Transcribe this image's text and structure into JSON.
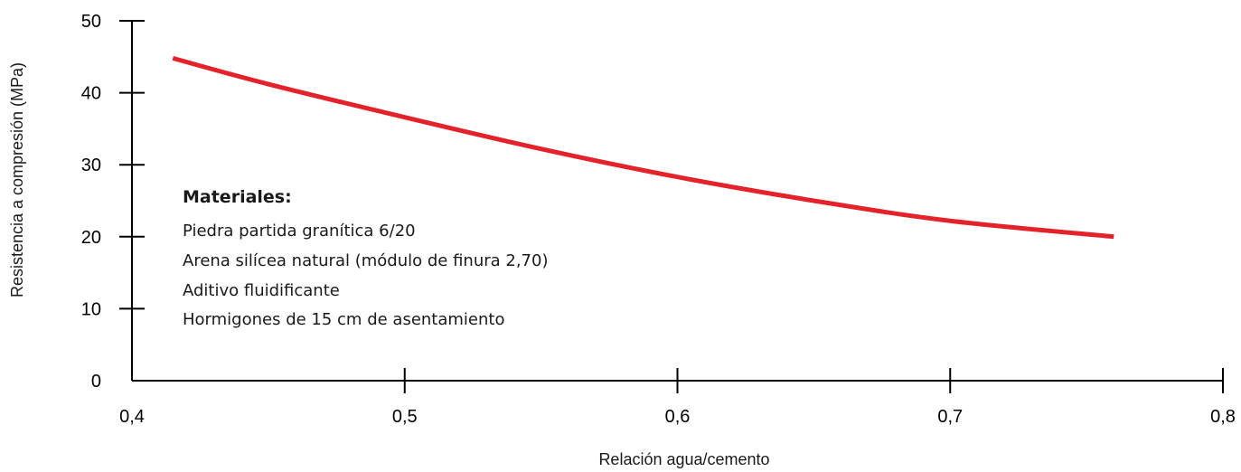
{
  "chart_data": {
    "type": "line",
    "title": "",
    "xlabel": "Relación agua/cemento",
    "ylabel": "Resistencia a compresión (MPa)",
    "xlim": [
      0.4,
      0.8
    ],
    "ylim": [
      0,
      50
    ],
    "x_ticks": [
      0.4,
      0.5,
      0.6,
      0.7,
      0.8
    ],
    "x_tick_labels": [
      "0,4",
      "0,5",
      "0,6",
      "0,7",
      "0,8"
    ],
    "y_ticks": [
      0,
      10,
      20,
      30,
      40,
      50
    ],
    "y_tick_labels": [
      "0",
      "10",
      "20",
      "30",
      "40",
      "50"
    ],
    "grid": false,
    "series": [
      {
        "color": "#e3222a",
        "x": [
          0.415,
          0.45,
          0.5,
          0.55,
          0.6,
          0.65,
          0.7,
          0.76
        ],
        "values": [
          44.8,
          41.2,
          36.6,
          32.2,
          28.3,
          25.0,
          22.2,
          20.0
        ]
      }
    ],
    "annotation": {
      "heading": "Materiales:",
      "lines": [
        "Piedra partida granítica 6/20",
        "Arena silícea natural (módulo de finura 2,70)",
        "Aditivo fluidificante",
        "Hormigones de 15 cm de asentamiento"
      ]
    }
  }
}
